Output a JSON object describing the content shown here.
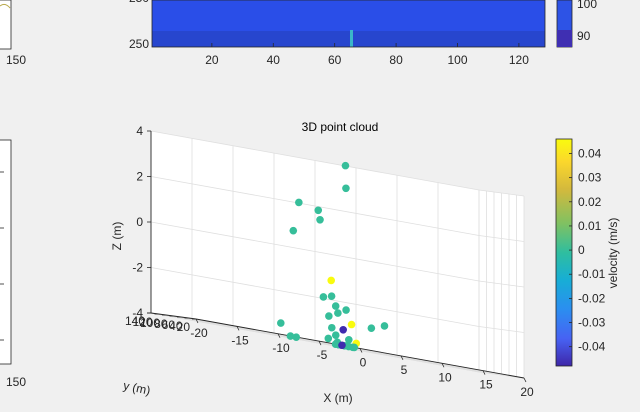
{
  "chart_data": [
    {
      "type": "heatmap",
      "title": "",
      "xticks": [
        "20",
        "40",
        "60",
        "80",
        "100",
        "120"
      ],
      "yticks": [
        "250"
      ],
      "clipped_ytick": "250",
      "colorbar_ticks": [
        "100",
        "90"
      ],
      "colors": {
        "field": "#2a4ee8",
        "band": "#243fb8",
        "spike": "#3bb6c9"
      }
    },
    {
      "type": "scatter",
      "title": "3D point cloud",
      "xlabel": "X (m)",
      "ylabel": "y (m)",
      "zlabel": "Z (m)",
      "xlim": [
        -20,
        20
      ],
      "ylim": [
        20,
        140
      ],
      "zlim": [
        -4,
        4
      ],
      "xticks": [
        "-20",
        "-15",
        "-10",
        "-5",
        "0",
        "5",
        "10",
        "15",
        "20"
      ],
      "yticks": [
        "20",
        "40",
        "60",
        "80",
        "100",
        "120",
        "140"
      ],
      "zticks": [
        "-4",
        "-2",
        "0",
        "2",
        "4"
      ],
      "colorbar": {
        "label": "velocity (m/s)",
        "range": [
          -0.048,
          0.046
        ],
        "ticks": [
          "0.04",
          "0.03",
          "0.02",
          "0.01",
          "0",
          "-0.01",
          "-0.02",
          "-0.03",
          "-0.04"
        ],
        "colors": [
          "#3e26a8",
          "#4762f3",
          "#2b8ef0",
          "#17aed5",
          "#2fbe9f",
          "#81c161",
          "#d4b93c",
          "#fbd72c",
          "#f9fb0e"
        ]
      },
      "points": [
        {
          "x": -3.8,
          "y": 100,
          "z": 2.0,
          "v": 0.0
        },
        {
          "x": -1.8,
          "y": 92,
          "z": 1.8,
          "v": 0.0
        },
        {
          "x": -5.3,
          "y": 82,
          "z": 0.7,
          "v": 0.0
        },
        {
          "x": -1.4,
          "y": 96,
          "z": 1.4,
          "v": 0.0
        },
        {
          "x": 2.8,
          "y": 120,
          "z": 4.0,
          "v": 0.0
        },
        {
          "x": 2.4,
          "y": 110,
          "z": 3.0,
          "v": 0.0
        },
        {
          "x": -1.5,
          "y": 64,
          "z": -1.2,
          "v": 0.046
        },
        {
          "x": -2.0,
          "y": 52,
          "z": -1.9,
          "v": 0.0
        },
        {
          "x": -1.5,
          "y": 52,
          "z": -2.3,
          "v": 0.0
        },
        {
          "x": -3.0,
          "y": 52,
          "z": -2.0,
          "v": 0.0
        },
        {
          "x": -1.6,
          "y": 44,
          "z": -2.6,
          "v": 0.0
        },
        {
          "x": -2.7,
          "y": 44,
          "z": -2.8,
          "v": 0.0
        },
        {
          "x": -0.6,
          "y": 44,
          "z": -2.4,
          "v": 0.0
        },
        {
          "x": -0.3,
          "y": 36,
          "z": -3.0,
          "v": 0.046
        },
        {
          "x": 2.3,
          "y": 40,
          "z": -3.0,
          "v": 0.0
        },
        {
          "x": 3.9,
          "y": 40,
          "z": -2.8,
          "v": 0.0
        },
        {
          "x": -1.5,
          "y": 32,
          "z": -3.3,
          "v": -0.047
        },
        {
          "x": -2.8,
          "y": 34,
          "z": -3.3,
          "v": 0.0
        },
        {
          "x": -9.2,
          "y": 30,
          "z": -3.5,
          "v": 0.0
        },
        {
          "x": -1.0,
          "y": 28,
          "z": -3.7,
          "v": 0.0
        },
        {
          "x": -2.5,
          "y": 30,
          "z": -3.6,
          "v": 0.0
        },
        {
          "x": -3.5,
          "y": 28,
          "z": -3.8,
          "v": 0.0
        },
        {
          "x": 0.0,
          "y": 30,
          "z": -3.8,
          "v": 0.046
        },
        {
          "x": -2.4,
          "y": 28,
          "z": -3.9,
          "v": 0.0
        },
        {
          "x": -7.5,
          "y": 26,
          "z": -4.0,
          "v": 0.0
        },
        {
          "x": -2.8,
          "y": 24,
          "z": -4.0,
          "v": 0.0
        },
        {
          "x": -0.7,
          "y": 24,
          "z": -4.0,
          "v": 0.0
        },
        {
          "x": -1.7,
          "y": 24,
          "z": -4.0,
          "v": 0.0
        },
        {
          "x": -1.2,
          "y": 24,
          "z": -4.0,
          "v": 0.0
        },
        {
          "x": -8.3,
          "y": 24,
          "z": -4.0,
          "v": 0.0
        },
        {
          "x": -2.5,
          "y": 22,
          "z": -4.0,
          "v": 0.0
        },
        {
          "x": -2.6,
          "y": 20,
          "z": -4.0,
          "v": 0.0
        },
        {
          "x": -0.7,
          "y": 20,
          "z": -4.0,
          "v": 0.0
        },
        {
          "x": -2.2,
          "y": 20,
          "z": -4.0,
          "v": -0.047
        }
      ]
    },
    {
      "type": "other",
      "title": "",
      "tick_labels": [
        "150",
        "150"
      ]
    }
  ]
}
